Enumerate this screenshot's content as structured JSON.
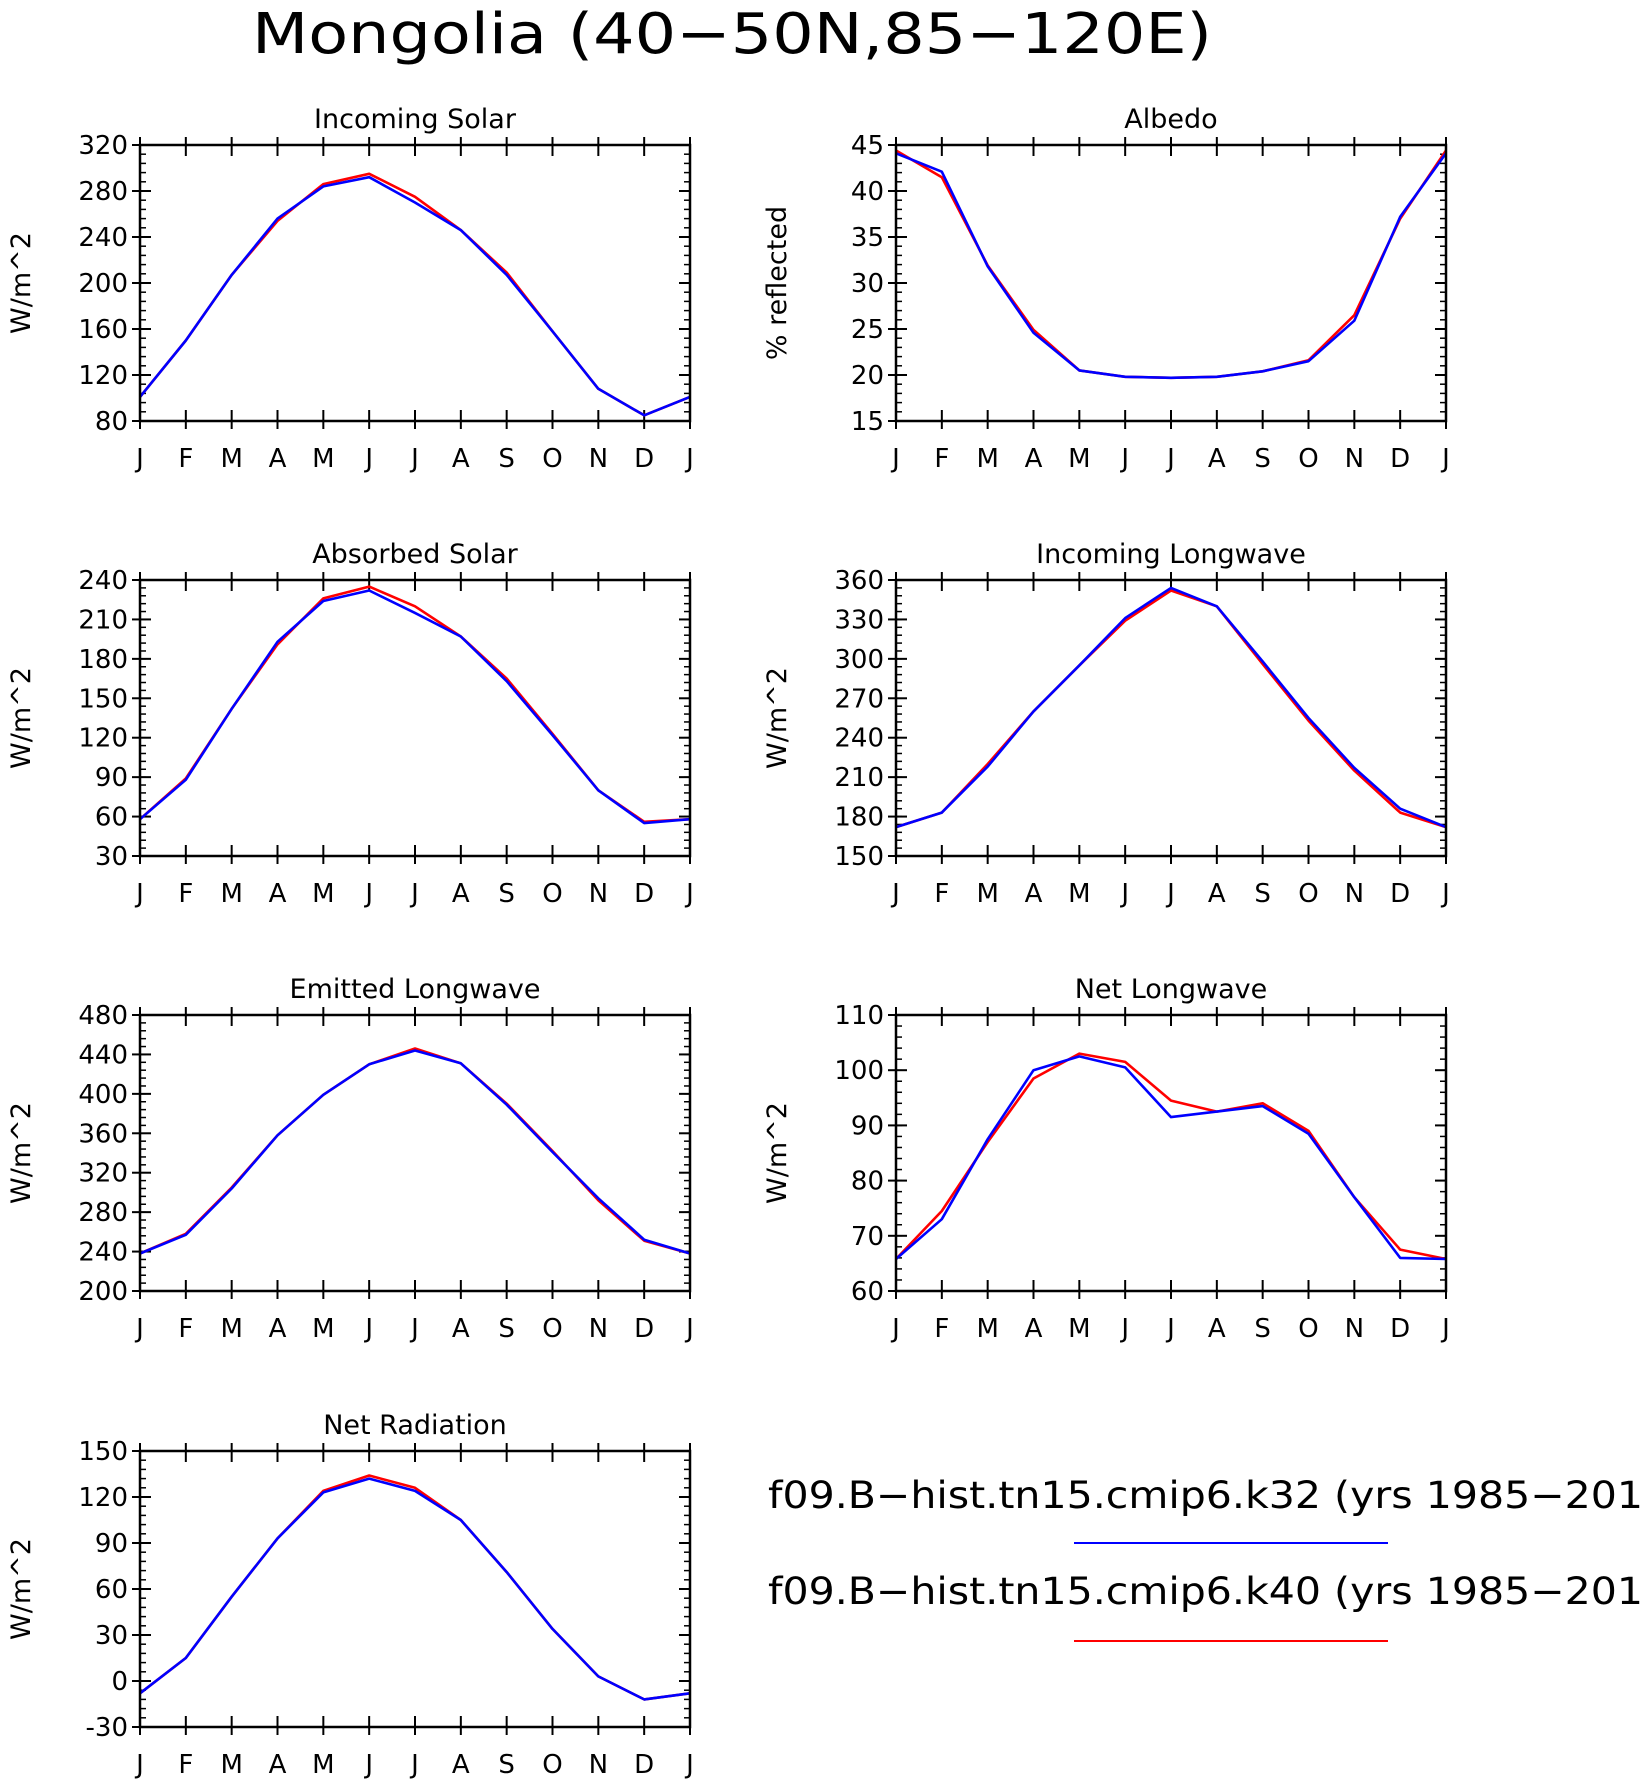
{
  "page": {
    "title": "Mongolia (40−50N,85−120E)"
  },
  "month_labels": [
    "J",
    "F",
    "M",
    "A",
    "M",
    "J",
    "J",
    "A",
    "S",
    "O",
    "N",
    "D",
    "J"
  ],
  "colors": {
    "k32": "#0000ff",
    "k40": "#ff0000"
  },
  "legend": {
    "entries": [
      {
        "label": "f09.B−hist.tn15.cmip6.k32 (yrs 1985−201",
        "color": "#0000ff"
      },
      {
        "label": "f09.B−hist.tn15.cmip6.k40 (yrs 1985−201",
        "color": "#ff0000"
      }
    ]
  },
  "chart_data": [
    {
      "type": "line",
      "title": "Incoming Solar",
      "ylabel": "W/m^2",
      "ylim": [
        80,
        320
      ],
      "yticks": [
        80,
        120,
        160,
        200,
        240,
        280,
        320
      ],
      "x": [
        "J",
        "F",
        "M",
        "A",
        "M",
        "J",
        "J",
        "A",
        "S",
        "O",
        "N",
        "D",
        "J"
      ],
      "series": [
        {
          "color": "#ff0000",
          "values": [
            101,
            150,
            207,
            254,
            286,
            295,
            275,
            246,
            209,
            158,
            108,
            85,
            101
          ]
        },
        {
          "color": "#0000ff",
          "values": [
            101,
            150,
            207,
            256,
            284,
            292,
            270,
            246,
            207,
            158,
            108,
            85,
            101
          ]
        }
      ]
    },
    {
      "type": "line",
      "title": "Albedo",
      "ylabel": "% reflected",
      "ylim": [
        15,
        45
      ],
      "yticks": [
        15,
        20,
        25,
        30,
        35,
        40,
        45
      ],
      "x": [
        "J",
        "F",
        "M",
        "A",
        "M",
        "J",
        "J",
        "A",
        "S",
        "O",
        "N",
        "D",
        "J"
      ],
      "series": [
        {
          "color": "#ff0000",
          "values": [
            44.4,
            41.5,
            31.9,
            24.9,
            20.5,
            19.8,
            19.7,
            19.8,
            20.4,
            21.6,
            26.5,
            37.0,
            44.4
          ]
        },
        {
          "color": "#0000ff",
          "values": [
            44.1,
            42.1,
            31.8,
            24.6,
            20.5,
            19.8,
            19.7,
            19.8,
            20.4,
            21.5,
            25.9,
            37.2,
            44.1
          ]
        }
      ]
    },
    {
      "type": "line",
      "title": "Absorbed Solar",
      "ylabel": "W/m^2",
      "ylim": [
        30,
        240
      ],
      "yticks": [
        30,
        60,
        90,
        120,
        150,
        180,
        210,
        240
      ],
      "x": [
        "J",
        "F",
        "M",
        "A",
        "M",
        "J",
        "J",
        "A",
        "S",
        "O",
        "N",
        "D",
        "J"
      ],
      "series": [
        {
          "color": "#ff0000",
          "values": [
            58,
            89,
            142,
            191,
            226,
            235,
            220,
            197,
            165,
            123,
            80,
            56,
            58
          ]
        },
        {
          "color": "#0000ff",
          "values": [
            58,
            88,
            142,
            193,
            224,
            232,
            215,
            197,
            163,
            122,
            80,
            55,
            58
          ]
        }
      ]
    },
    {
      "type": "line",
      "title": "Incoming Longwave",
      "ylabel": "W/m^2",
      "ylim": [
        150,
        360
      ],
      "yticks": [
        150,
        180,
        210,
        240,
        270,
        300,
        330,
        360
      ],
      "x": [
        "J",
        "F",
        "M",
        "A",
        "M",
        "J",
        "J",
        "A",
        "S",
        "O",
        "N",
        "D",
        "J"
      ],
      "series": [
        {
          "color": "#ff0000",
          "values": [
            172,
            183,
            220,
            260,
            295,
            329,
            352,
            340,
            296,
            253,
            215,
            183,
            172
          ]
        },
        {
          "color": "#0000ff",
          "values": [
            172,
            183,
            218,
            260,
            295,
            331,
            354,
            340,
            298,
            255,
            217,
            186,
            172
          ]
        }
      ]
    },
    {
      "type": "line",
      "title": "Emitted Longwave",
      "ylabel": "W/m^2",
      "ylim": [
        200,
        480
      ],
      "yticks": [
        200,
        240,
        280,
        320,
        360,
        400,
        440,
        480
      ],
      "x": [
        "J",
        "F",
        "M",
        "A",
        "M",
        "J",
        "J",
        "A",
        "S",
        "O",
        "N",
        "D",
        "J"
      ],
      "series": [
        {
          "color": "#ff0000",
          "values": [
            238,
            258,
            305,
            358,
            399,
            430,
            446,
            431,
            390,
            342,
            292,
            251,
            238
          ]
        },
        {
          "color": "#0000ff",
          "values": [
            238,
            257,
            304,
            358,
            399,
            430,
            444,
            431,
            389,
            341,
            294,
            252,
            238
          ]
        }
      ]
    },
    {
      "type": "line",
      "title": "Net Longwave",
      "ylabel": "W/m^2",
      "ylim": [
        60,
        110
      ],
      "yticks": [
        60,
        70,
        80,
        90,
        100,
        110
      ],
      "x": [
        "J",
        "F",
        "M",
        "A",
        "M",
        "J",
        "J",
        "A",
        "S",
        "O",
        "N",
        "D",
        "J"
      ],
      "series": [
        {
          "color": "#ff0000",
          "values": [
            65.8,
            74.5,
            87.0,
            98.5,
            103.0,
            101.5,
            94.5,
            92.5,
            94.0,
            89.0,
            77.0,
            67.5,
            65.8
          ]
        },
        {
          "color": "#0000ff",
          "values": [
            65.8,
            73.0,
            87.5,
            100.0,
            102.5,
            100.5,
            91.5,
            92.5,
            93.5,
            88.5,
            77.0,
            66.0,
            65.8
          ]
        }
      ]
    },
    {
      "type": "line",
      "title": "Net Radiation",
      "ylabel": "W/m^2",
      "ylim": [
        -30,
        150
      ],
      "yticks": [
        -30,
        0,
        30,
        60,
        90,
        120,
        150
      ],
      "x": [
        "J",
        "F",
        "M",
        "A",
        "M",
        "J",
        "J",
        "A",
        "S",
        "O",
        "N",
        "D",
        "J"
      ],
      "series": [
        {
          "color": "#ff0000",
          "values": [
            -8,
            15,
            55,
            93,
            124,
            134,
            126,
            105,
            71,
            34,
            3,
            -12,
            -8
          ]
        },
        {
          "color": "#0000ff",
          "values": [
            -8,
            15,
            55,
            93,
            123,
            132,
            124,
            105,
            71,
            34,
            3,
            -12,
            -8
          ]
        }
      ]
    }
  ]
}
